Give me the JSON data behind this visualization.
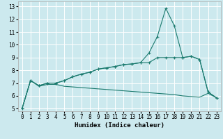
{
  "title": "",
  "xlabel": "Humidex (Indice chaleur)",
  "ylabel": "",
  "bg_color": "#cce9ee",
  "grid_color": "#b0d8e0",
  "line_color": "#1a7a6e",
  "xlim": [
    -0.5,
    23.5
  ],
  "ylim": [
    4.8,
    13.4
  ],
  "xticks": [
    0,
    1,
    2,
    3,
    4,
    5,
    6,
    7,
    8,
    9,
    10,
    11,
    12,
    13,
    14,
    15,
    16,
    17,
    18,
    19,
    20,
    21,
    22,
    23
  ],
  "yticks": [
    5,
    6,
    7,
    8,
    9,
    10,
    11,
    12,
    13
  ],
  "line1_x": [
    0,
    1,
    2,
    3,
    4,
    5,
    6,
    7,
    8,
    9,
    10,
    11,
    12,
    13,
    14,
    15,
    16,
    17,
    18,
    19,
    20,
    21,
    22,
    23
  ],
  "line1_y": [
    5.0,
    7.2,
    6.8,
    7.0,
    7.0,
    7.2,
    7.5,
    7.7,
    7.85,
    8.1,
    8.2,
    8.3,
    8.45,
    8.5,
    8.6,
    9.35,
    10.65,
    12.85,
    11.5,
    9.0,
    9.1,
    8.85,
    6.3,
    5.85
  ],
  "line2_x": [
    0,
    1,
    2,
    3,
    4,
    5,
    6,
    7,
    8,
    9,
    10,
    11,
    12,
    13,
    14,
    15,
    16,
    17,
    18,
    19,
    20,
    21,
    22,
    23
  ],
  "line2_y": [
    5.0,
    7.2,
    6.8,
    7.0,
    7.0,
    7.2,
    7.5,
    7.7,
    7.85,
    8.1,
    8.2,
    8.3,
    8.45,
    8.5,
    8.6,
    8.6,
    9.0,
    9.0,
    9.0,
    9.0,
    9.1,
    8.85,
    6.3,
    5.85
  ],
  "line3_x": [
    0,
    1,
    2,
    3,
    4,
    5,
    6,
    7,
    8,
    9,
    10,
    11,
    12,
    13,
    14,
    15,
    16,
    17,
    18,
    19,
    20,
    21,
    22,
    23
  ],
  "line3_y": [
    5.0,
    7.2,
    6.75,
    6.9,
    6.9,
    6.75,
    6.7,
    6.65,
    6.6,
    6.55,
    6.5,
    6.45,
    6.4,
    6.35,
    6.3,
    6.25,
    6.2,
    6.15,
    6.1,
    6.0,
    5.95,
    5.9,
    6.2,
    5.85
  ],
  "marker": "+",
  "markersize": 3,
  "linewidth": 0.8,
  "xlabel_fontsize": 6.5,
  "tick_fontsize": 5.5
}
